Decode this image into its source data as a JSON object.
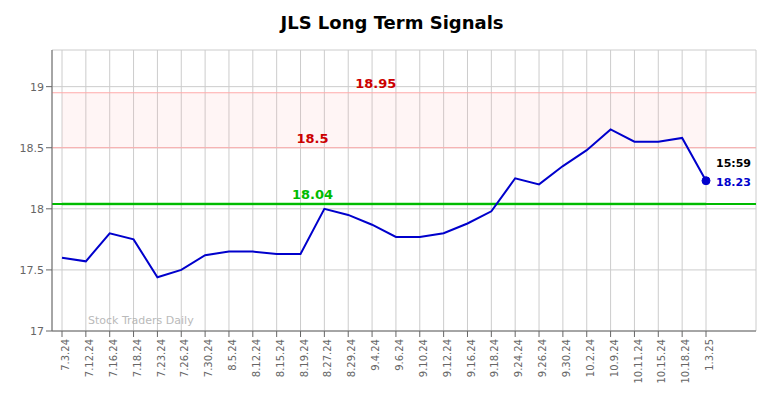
{
  "chart_data": {
    "type": "line",
    "title": "JLS Long Term Signals",
    "categories": [
      "7.3.24",
      "7.12.24",
      "7.16.24",
      "7.18.24",
      "7.23.24",
      "7.26.24",
      "7.30.24",
      "8.5.24",
      "8.12.24",
      "8.15.24",
      "8.19.24",
      "8.27.24",
      "8.29.24",
      "9.4.24",
      "9.6.24",
      "9.10.24",
      "9.12.24",
      "9.16.24",
      "9.18.24",
      "9.24.24",
      "9.26.24",
      "9.30.24",
      "10.2.24",
      "10.9.24",
      "10.11.24",
      "10.15.24",
      "10.18.24",
      "1.3.25"
    ],
    "values": [
      17.6,
      17.57,
      17.8,
      17.75,
      17.44,
      17.5,
      17.62,
      17.65,
      17.65,
      17.63,
      17.63,
      18.0,
      17.95,
      17.87,
      17.77,
      17.77,
      17.8,
      17.88,
      17.98,
      18.25,
      18.2,
      18.35,
      18.48,
      18.65,
      18.55,
      18.55,
      18.58,
      18.23
    ],
    "color": "#0000cc",
    "ylim": [
      17.0,
      19.3
    ],
    "yticks": [
      17,
      17.5,
      18,
      18.5,
      19
    ],
    "grid": true,
    "reference_lines": [
      {
        "y": 18.95,
        "color": "#ffaaaa",
        "label": "18.95",
        "label_color": "#cc0000"
      },
      {
        "y": 18.5,
        "color": "#ffaaaa",
        "label": "18.5",
        "label_color": "#cc0000"
      },
      {
        "y": 18.04,
        "color": "#00bb00",
        "label": "18.04",
        "label_color": "#00bb00"
      }
    ],
    "bands": [
      {
        "from": 18.5,
        "to": 18.95,
        "color": "#ffaaaa"
      },
      {
        "from": 18.025,
        "to": 18.055,
        "color": "#00cc00"
      }
    ],
    "end_labels": [
      {
        "text": "15:59",
        "color": "#000000"
      },
      {
        "text": "18.23",
        "color": "#0000cc"
      }
    ],
    "watermark": "Stock Traders Daily"
  }
}
